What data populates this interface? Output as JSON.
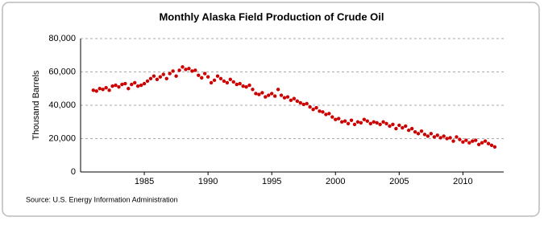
{
  "chart_data": {
    "type": "scatter",
    "title": "Monthly Alaska Field Production of Crude Oil",
    "y_label": "Thousand Barrels",
    "source": "Source: U.S. Energy Information Administration",
    "color": "#cc0000",
    "grid": true,
    "xlim": [
      1980,
      2013.2
    ],
    "xticks": [
      1985,
      1990,
      1995,
      2000,
      2005,
      2010
    ],
    "ylim": [
      0,
      80000
    ],
    "yticks": [
      0,
      {
        "value": 20000,
        "label": "20,000"
      },
      {
        "value": 40000,
        "label": "40,000"
      },
      {
        "value": 60000,
        "label": "60,000"
      },
      {
        "value": 80000,
        "label": "80,000"
      }
    ],
    "x": [
      1981,
      1981.25,
      1981.5,
      1981.75,
      1982,
      1982.25,
      1982.5,
      1982.75,
      1983,
      1983.25,
      1983.5,
      1983.75,
      1984,
      1984.25,
      1984.5,
      1984.75,
      1985,
      1985.25,
      1985.5,
      1985.75,
      1986,
      1986.25,
      1986.5,
      1986.75,
      1987,
      1987.25,
      1987.5,
      1987.75,
      1988,
      1988.25,
      1988.5,
      1988.75,
      1989,
      1989.25,
      1989.5,
      1989.75,
      1990,
      1990.25,
      1990.5,
      1990.75,
      1991,
      1991.25,
      1991.5,
      1991.75,
      1992,
      1992.25,
      1992.5,
      1992.75,
      1993,
      1993.25,
      1993.5,
      1993.75,
      1994,
      1994.25,
      1994.5,
      1994.75,
      1995,
      1995.25,
      1995.5,
      1995.75,
      1996,
      1996.25,
      1996.5,
      1996.75,
      1997,
      1997.25,
      1997.5,
      1997.75,
      1998,
      1998.25,
      1998.5,
      1998.75,
      1999,
      1999.25,
      1999.5,
      1999.75,
      2000,
      2000.25,
      2000.5,
      2000.75,
      2001,
      2001.25,
      2001.5,
      2001.75,
      2002,
      2002.25,
      2002.5,
      2002.75,
      2003,
      2003.25,
      2003.5,
      2003.75,
      2004,
      2004.25,
      2004.5,
      2004.75,
      2005,
      2005.25,
      2005.5,
      2005.75,
      2006,
      2006.25,
      2006.5,
      2006.75,
      2007,
      2007.25,
      2007.5,
      2007.75,
      2008,
      2008.25,
      2008.5,
      2008.75,
      2009,
      2009.25,
      2009.5,
      2009.75,
      2010,
      2010.25,
      2010.5,
      2010.75,
      2011,
      2011.25,
      2011.5,
      2011.75,
      2012,
      2012.25,
      2012.5
    ],
    "values": [
      49000,
      48500,
      50000,
      49500,
      50500,
      49000,
      51500,
      52000,
      51000,
      52500,
      53000,
      50000,
      52500,
      53500,
      51500,
      52000,
      53000,
      54500,
      56000,
      57500,
      55500,
      57000,
      58500,
      56000,
      59000,
      60500,
      57500,
      61000,
      63000,
      61500,
      62000,
      60500,
      61000,
      58000,
      56500,
      59000,
      57000,
      53500,
      55000,
      57500,
      56000,
      54500,
      53500,
      55500,
      54000,
      52500,
      53000,
      51500,
      51000,
      52000,
      49500,
      47000,
      46500,
      47500,
      45000,
      46000,
      47000,
      45500,
      49500,
      46000,
      44500,
      45000,
      43000,
      44000,
      42500,
      41500,
      40500,
      41000,
      39000,
      37500,
      38500,
      36500,
      36000,
      34500,
      35000,
      33000,
      31500,
      32000,
      30000,
      30500,
      29000,
      31000,
      28500,
      30000,
      29500,
      31500,
      30500,
      29000,
      30000,
      29500,
      28500,
      30000,
      29000,
      27500,
      28500,
      26000,
      28000,
      26500,
      27500,
      25000,
      26000,
      24000,
      23000,
      24500,
      22500,
      21500,
      23000,
      21000,
      22000,
      20500,
      21500,
      20000,
      20500,
      18500,
      21000,
      19500,
      18000,
      19000,
      17500,
      18500,
      19000,
      16500,
      17500,
      18500,
      17000,
      16000,
      15000
    ]
  }
}
